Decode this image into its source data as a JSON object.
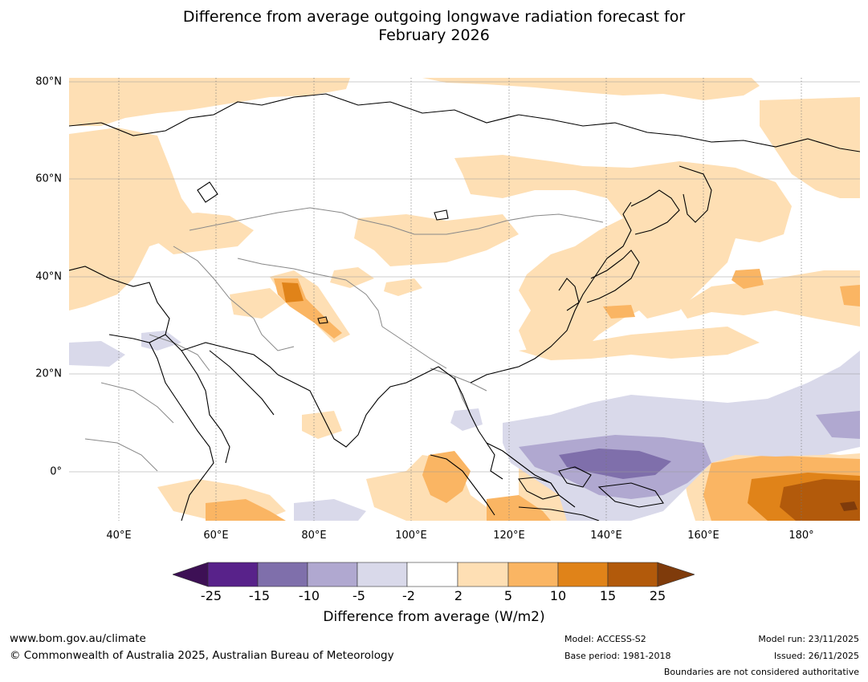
{
  "title": {
    "line1": "Difference from average outgoing longwave radiation forecast for",
    "line2": "February 2026"
  },
  "map": {
    "region": "Asia and Western Pacific",
    "lat_labels": [
      "80°N",
      "60°N",
      "40°N",
      "20°N",
      "0°"
    ],
    "lon_labels": [
      "40°E",
      "60°E",
      "80°E",
      "100°E",
      "120°E",
      "140°E",
      "160°E",
      "180°"
    ]
  },
  "colorbar": {
    "ticks": [
      "-25",
      "-15",
      "-10",
      "-5",
      "-2",
      "2",
      "5",
      "10",
      "15",
      "25"
    ],
    "colors": {
      "below_min": "#3d1055",
      "n25_n15": "#58228a",
      "n15_n10": "#7f6fab",
      "n10_n5": "#b0a8d0",
      "n5_n2": "#d9d9ea",
      "n2_2": "#ffffff",
      "p2_5": "#fedfb4",
      "p5_10": "#fab563",
      "p10_15": "#e08319",
      "p15_25": "#b25a0b",
      "above_max": "#7f3b0b"
    },
    "label": "Difference from average (W/m2)"
  },
  "footer": {
    "website": "www.bom.gov.au/climate",
    "copyright": "© Commonwealth of Australia 2025, Australian Bureau of Meteorology",
    "model": "Model: ACCESS-S2",
    "base_period": "Base period: 1981-2018",
    "model_run": "Model run: 23/11/2025",
    "issued": "Issued: 26/11/2025",
    "disclaimer": "Boundaries are not considered authoritative"
  }
}
